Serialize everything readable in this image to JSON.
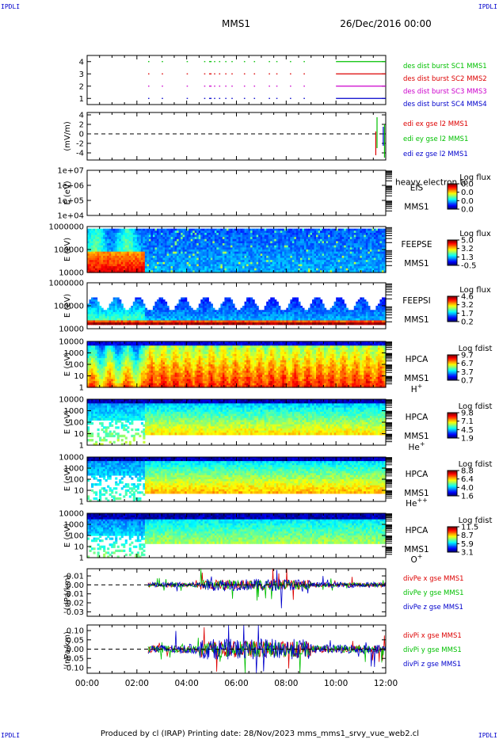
{
  "corner_label": "IPDLI",
  "header": {
    "left": "MMS1",
    "right": "26/Dec/2016 00:00"
  },
  "footer": "Produced by cl (IRAP)   Printing date: 28/Nov/2023   mms_mms1_srvy_vue_web2.cl",
  "time_axis": {
    "labels": [
      "00:00",
      "02:00",
      "04:00",
      "06:00",
      "08:00",
      "10:00",
      "12:00"
    ],
    "range_hours": [
      0,
      12
    ]
  },
  "colors": {
    "red": "#dd0000",
    "green": "#00c000",
    "blue": "#0000cc",
    "magenta": "#cc00cc",
    "black": "#000000"
  },
  "chart_data": [
    {
      "type": "line",
      "panel": "burst",
      "ylabel": "",
      "ylim": [
        0.5,
        4.5
      ],
      "ytick_labels": [
        "1",
        "2",
        "3",
        "4"
      ],
      "series": [
        {
          "name": "des dist burst SC1 MMS1",
          "level": 4,
          "color": "#00c000",
          "intervals": [
            [
              2.45,
              2.5
            ],
            [
              3.0,
              3.05
            ],
            [
              4.0,
              4.05
            ],
            [
              4.7,
              4.75
            ],
            [
              4.9,
              5.0
            ],
            [
              5.1,
              5.15
            ],
            [
              5.3,
              5.35
            ],
            [
              5.55,
              5.6
            ],
            [
              5.8,
              5.85
            ],
            [
              6.3,
              6.35
            ],
            [
              6.7,
              6.75
            ],
            [
              7.3,
              7.35
            ],
            [
              7.6,
              7.65
            ],
            [
              8.15,
              8.2
            ],
            [
              8.7,
              8.75
            ],
            [
              10.0,
              12.0
            ]
          ]
        },
        {
          "name": "des dist burst SC2 MMS2",
          "level": 3,
          "color": "#dd0000",
          "intervals": [
            [
              2.45,
              2.5
            ],
            [
              3.0,
              3.05
            ],
            [
              4.0,
              4.05
            ],
            [
              4.7,
              4.75
            ],
            [
              4.9,
              5.0
            ],
            [
              5.1,
              5.15
            ],
            [
              5.3,
              5.35
            ],
            [
              5.55,
              5.6
            ],
            [
              5.8,
              5.85
            ],
            [
              6.3,
              6.35
            ],
            [
              6.7,
              6.75
            ],
            [
              7.3,
              7.35
            ],
            [
              7.6,
              7.65
            ],
            [
              8.15,
              8.2
            ],
            [
              8.7,
              8.75
            ],
            [
              10.0,
              12.0
            ]
          ]
        },
        {
          "name": "des dist burst SC3 MMS3",
          "level": 2,
          "color": "#cc00cc",
          "intervals": [
            [
              2.45,
              2.5
            ],
            [
              3.0,
              3.05
            ],
            [
              4.0,
              4.05
            ],
            [
              4.7,
              4.75
            ],
            [
              4.9,
              5.0
            ],
            [
              5.1,
              5.15
            ],
            [
              5.3,
              5.35
            ],
            [
              5.55,
              5.6
            ],
            [
              5.8,
              5.85
            ],
            [
              6.3,
              6.35
            ],
            [
              6.7,
              6.75
            ],
            [
              7.3,
              7.35
            ],
            [
              7.6,
              7.65
            ],
            [
              8.15,
              8.2
            ],
            [
              8.7,
              8.75
            ],
            [
              10.0,
              12.0
            ]
          ]
        },
        {
          "name": "des dist burst SC4 MMS4",
          "level": 1,
          "color": "#0000cc",
          "intervals": [
            [
              2.45,
              2.5
            ],
            [
              3.0,
              3.05
            ],
            [
              4.0,
              4.05
            ],
            [
              4.7,
              4.75
            ],
            [
              4.9,
              5.0
            ],
            [
              5.1,
              5.15
            ],
            [
              5.3,
              5.35
            ],
            [
              5.55,
              5.6
            ],
            [
              5.8,
              5.85
            ],
            [
              6.3,
              6.35
            ],
            [
              6.7,
              6.75
            ],
            [
              7.3,
              7.35
            ],
            [
              7.6,
              7.65
            ],
            [
              8.15,
              8.2
            ],
            [
              8.7,
              8.75
            ],
            [
              10.0,
              12.0
            ]
          ]
        }
      ]
    },
    {
      "type": "line",
      "panel": "edi",
      "ylabel": "(mV/m)",
      "ylim": [
        -5.5,
        4.5
      ],
      "ytick_labels": [
        "4",
        "2",
        "0",
        "-2",
        "-4"
      ],
      "ytick_values": [
        4,
        2,
        0,
        -2,
        -4
      ],
      "zero_line": true,
      "series": [
        {
          "name": "edi ex gse l2 MMS1",
          "color": "#dd0000",
          "spikes": [
            [
              11.6,
              0.5,
              -4.5
            ]
          ]
        },
        {
          "name": "edi ey gse l2 MMS1",
          "color": "#00c000",
          "spikes": [
            [
              11.65,
              3.5,
              -3.0
            ],
            [
              11.95,
              2.0,
              -5.0
            ]
          ]
        },
        {
          "name": "edi ez gse l2 MMS1",
          "color": "#0000cc",
          "spikes": [
            [
              11.9,
              1.5,
              -2.5
            ]
          ]
        }
      ]
    },
    {
      "type": "heatmap",
      "panel": "eis",
      "ylabel": "E (eV)",
      "ylim": [
        10000,
        10000000
      ],
      "log": true,
      "ytick_labels": [
        "1e+07",
        "1e+06",
        "1e+05",
        "1e+04"
      ],
      "ytick_values": [
        10000000,
        1000000,
        100000,
        10000
      ],
      "instrument": "EIS",
      "spacecraft": "MMS1",
      "overlay_text": "heavy electron to",
      "colorbar_title": "Log flux",
      "colorbar_ticks": [
        "0.0",
        "0.0",
        "0.0",
        "0.0"
      ],
      "data_coverage": "none"
    },
    {
      "type": "heatmap",
      "panel": "feepse",
      "ylabel": "E (eV)",
      "ylim": [
        10000,
        1000000
      ],
      "log": true,
      "ytick_labels": [
        "1000000",
        "100000",
        "10000"
      ],
      "ytick_values": [
        1000000,
        100000,
        10000
      ],
      "instrument": "FEEPSE",
      "spacecraft": "MMS1",
      "colorbar_title": "Log flux",
      "colorbar_ticks": [
        "5.0",
        "3.2",
        "1.3",
        "-0.5"
      ],
      "cmin": -0.5,
      "cmax": 5.0,
      "t_start": 0.0,
      "fill_top": 0.95
    },
    {
      "type": "heatmap",
      "panel": "feepsi",
      "ylabel": "E (eV)",
      "ylim": [
        10000,
        1000000
      ],
      "log": true,
      "ytick_labels": [
        "1000000",
        "100000",
        "10000"
      ],
      "ytick_values": [
        1000000,
        100000,
        10000
      ],
      "instrument": "FEEPSI",
      "spacecraft": "MMS1",
      "colorbar_title": "Log flux",
      "colorbar_ticks": [
        "4.6",
        "3.2",
        "1.7",
        "0.2"
      ],
      "cmin": 0.2,
      "cmax": 4.6,
      "t_start": 0.0,
      "fill_top": 0.55
    },
    {
      "type": "heatmap",
      "panel": "hpca_h",
      "ylabel": "E (eV)",
      "ylim": [
        1,
        10000
      ],
      "log": true,
      "ytick_labels": [
        "10000",
        "1000",
        "100",
        "10",
        "1"
      ],
      "ytick_values": [
        10000,
        1000,
        100,
        10,
        1
      ],
      "instrument": "HPCA",
      "spacecraft": "MMS1",
      "species": "H",
      "species_charge": "+",
      "colorbar_title": "Log fdist",
      "colorbar_ticks": [
        "9.7",
        "6.7",
        "3.7",
        "0.7"
      ],
      "cmin": 0.7,
      "cmax": 9.7,
      "t_start": 0.0,
      "fill_top": 1.0
    },
    {
      "type": "heatmap",
      "panel": "hpca_he",
      "ylabel": "E (eV)",
      "ylim": [
        1,
        10000
      ],
      "log": true,
      "ytick_labels": [
        "10000",
        "1000",
        "100",
        "10",
        "1"
      ],
      "ytick_values": [
        10000,
        1000,
        100,
        10,
        1
      ],
      "instrument": "HPCA",
      "spacecraft": "MMS1",
      "species": "He",
      "species_charge": "+",
      "colorbar_title": "Log fdist",
      "colorbar_ticks": [
        "9.8",
        "7.1",
        "4.5",
        "1.9"
      ],
      "cmin": 1.9,
      "cmax": 9.8,
      "t_start": 0.0,
      "fill_top": 1.0
    },
    {
      "type": "heatmap",
      "panel": "hpca_hepp",
      "ylabel": "E (eV)",
      "ylim": [
        1,
        10000
      ],
      "log": true,
      "ytick_labels": [
        "10000",
        "1000",
        "100",
        "10",
        "1"
      ],
      "ytick_values": [
        10000,
        1000,
        100,
        10,
        1
      ],
      "instrument": "HPCA",
      "spacecraft": "MMS1",
      "species": "He",
      "species_charge": "++",
      "colorbar_title": "Log fdist",
      "colorbar_ticks": [
        "8.8",
        "6.4",
        "4.0",
        "1.6"
      ],
      "cmin": 1.6,
      "cmax": 8.8,
      "t_start": 0.0,
      "fill_top": 1.0
    },
    {
      "type": "heatmap",
      "panel": "hpca_o",
      "ylabel": "E (eV)",
      "ylim": [
        1,
        10000
      ],
      "log": true,
      "ytick_labels": [
        "10000",
        "1000",
        "100",
        "10",
        "1"
      ],
      "ytick_values": [
        10000,
        1000,
        100,
        10,
        1
      ],
      "instrument": "HPCA",
      "spacecraft": "MMS1",
      "species": "O",
      "species_charge": "+",
      "colorbar_title": "Log fdist",
      "colorbar_ticks": [
        "11.5",
        "8.7",
        "5.9",
        "3.1"
      ],
      "cmin": 3.1,
      "cmax": 11.5,
      "t_start": 0.0,
      "fill_top": 1.0
    },
    {
      "type": "line",
      "panel": "divpe",
      "ylabel": "(nPa/km)",
      "ylim": [
        -0.035,
        0.018
      ],
      "ytick_labels": [
        "0.01",
        "0.00",
        "-0.01",
        "-0.02",
        "-0.03"
      ],
      "ytick_values": [
        0.01,
        0.0,
        -0.01,
        -0.02,
        -0.03
      ],
      "zero_line": true,
      "t_start": 2.45,
      "series": [
        {
          "name": "divPe x gse MMS1",
          "color": "#dd0000",
          "noise": 0.0025
        },
        {
          "name": "divPe y gse MMS1",
          "color": "#00c000",
          "noise": 0.0025
        },
        {
          "name": "divPe z gse MMS1",
          "color": "#0000cc",
          "noise": 0.003
        }
      ]
    },
    {
      "type": "line",
      "panel": "divpi",
      "ylabel": "(nPa/km)",
      "ylim": [
        -0.13,
        0.13
      ],
      "ytick_labels": [
        "0.10",
        "0.05",
        "0.00",
        "-0.05",
        "-0.10"
      ],
      "ytick_values": [
        0.1,
        0.05,
        0.0,
        -0.05,
        -0.1
      ],
      "zero_line": true,
      "t_start": 2.45,
      "series": [
        {
          "name": "divPi x gse MMS1",
          "color": "#dd0000",
          "noise": 0.02
        },
        {
          "name": "divPi y gse MMS1",
          "color": "#00c000",
          "noise": 0.02
        },
        {
          "name": "divPi z gse MMS1",
          "color": "#0000cc",
          "noise": 0.025
        }
      ]
    }
  ]
}
